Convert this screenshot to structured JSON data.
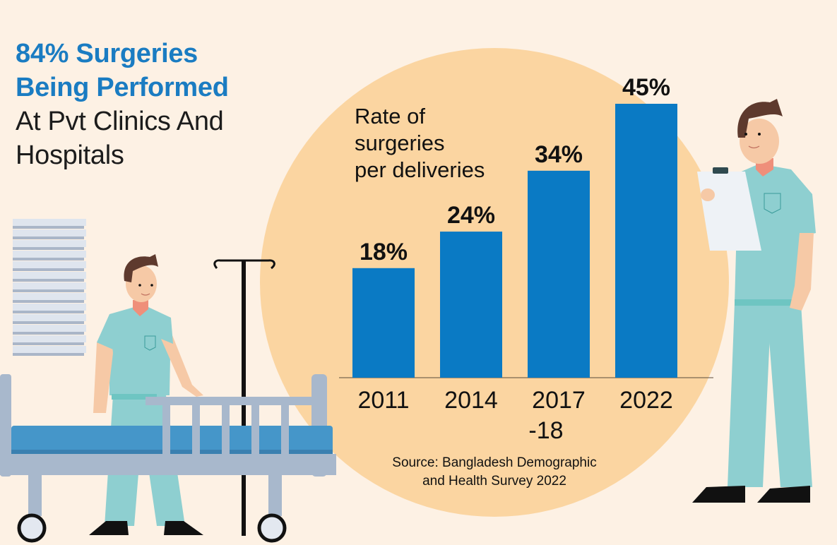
{
  "headline": {
    "highlight_lines": [
      "84% Surgeries",
      "Being Performed"
    ],
    "rest_lines": [
      "At Pvt Clinics And",
      "Hospitals"
    ]
  },
  "colors": {
    "background": "#fdf1e4",
    "circle": "#fbd5a1",
    "bar": "#0a7ac4",
    "highlight_text": "#1a7cc2",
    "scrubs": "#8ecfd0",
    "bed_frame": "#a8b8cc",
    "mattress": "#4596c9"
  },
  "chart_data": {
    "type": "bar",
    "title": "Rate of surgeries per deliveries",
    "title_lines": [
      "Rate of",
      "surgeries",
      "per deliveries"
    ],
    "categories": [
      "2011",
      "2014",
      "2017-18",
      "2022"
    ],
    "category_lines": [
      [
        "2011"
      ],
      [
        "2014"
      ],
      [
        "2017",
        "-18"
      ],
      [
        "2022"
      ]
    ],
    "values": [
      18,
      24,
      34,
      45
    ],
    "value_labels": [
      "18%",
      "24%",
      "34%",
      "45%"
    ],
    "xlabel": "",
    "ylabel": "",
    "ylim": [
      0,
      45
    ],
    "grid": false,
    "unit": "%"
  },
  "source": {
    "lines": [
      "Source: Bangladesh Demographic",
      "and Health Survey 2022"
    ]
  }
}
